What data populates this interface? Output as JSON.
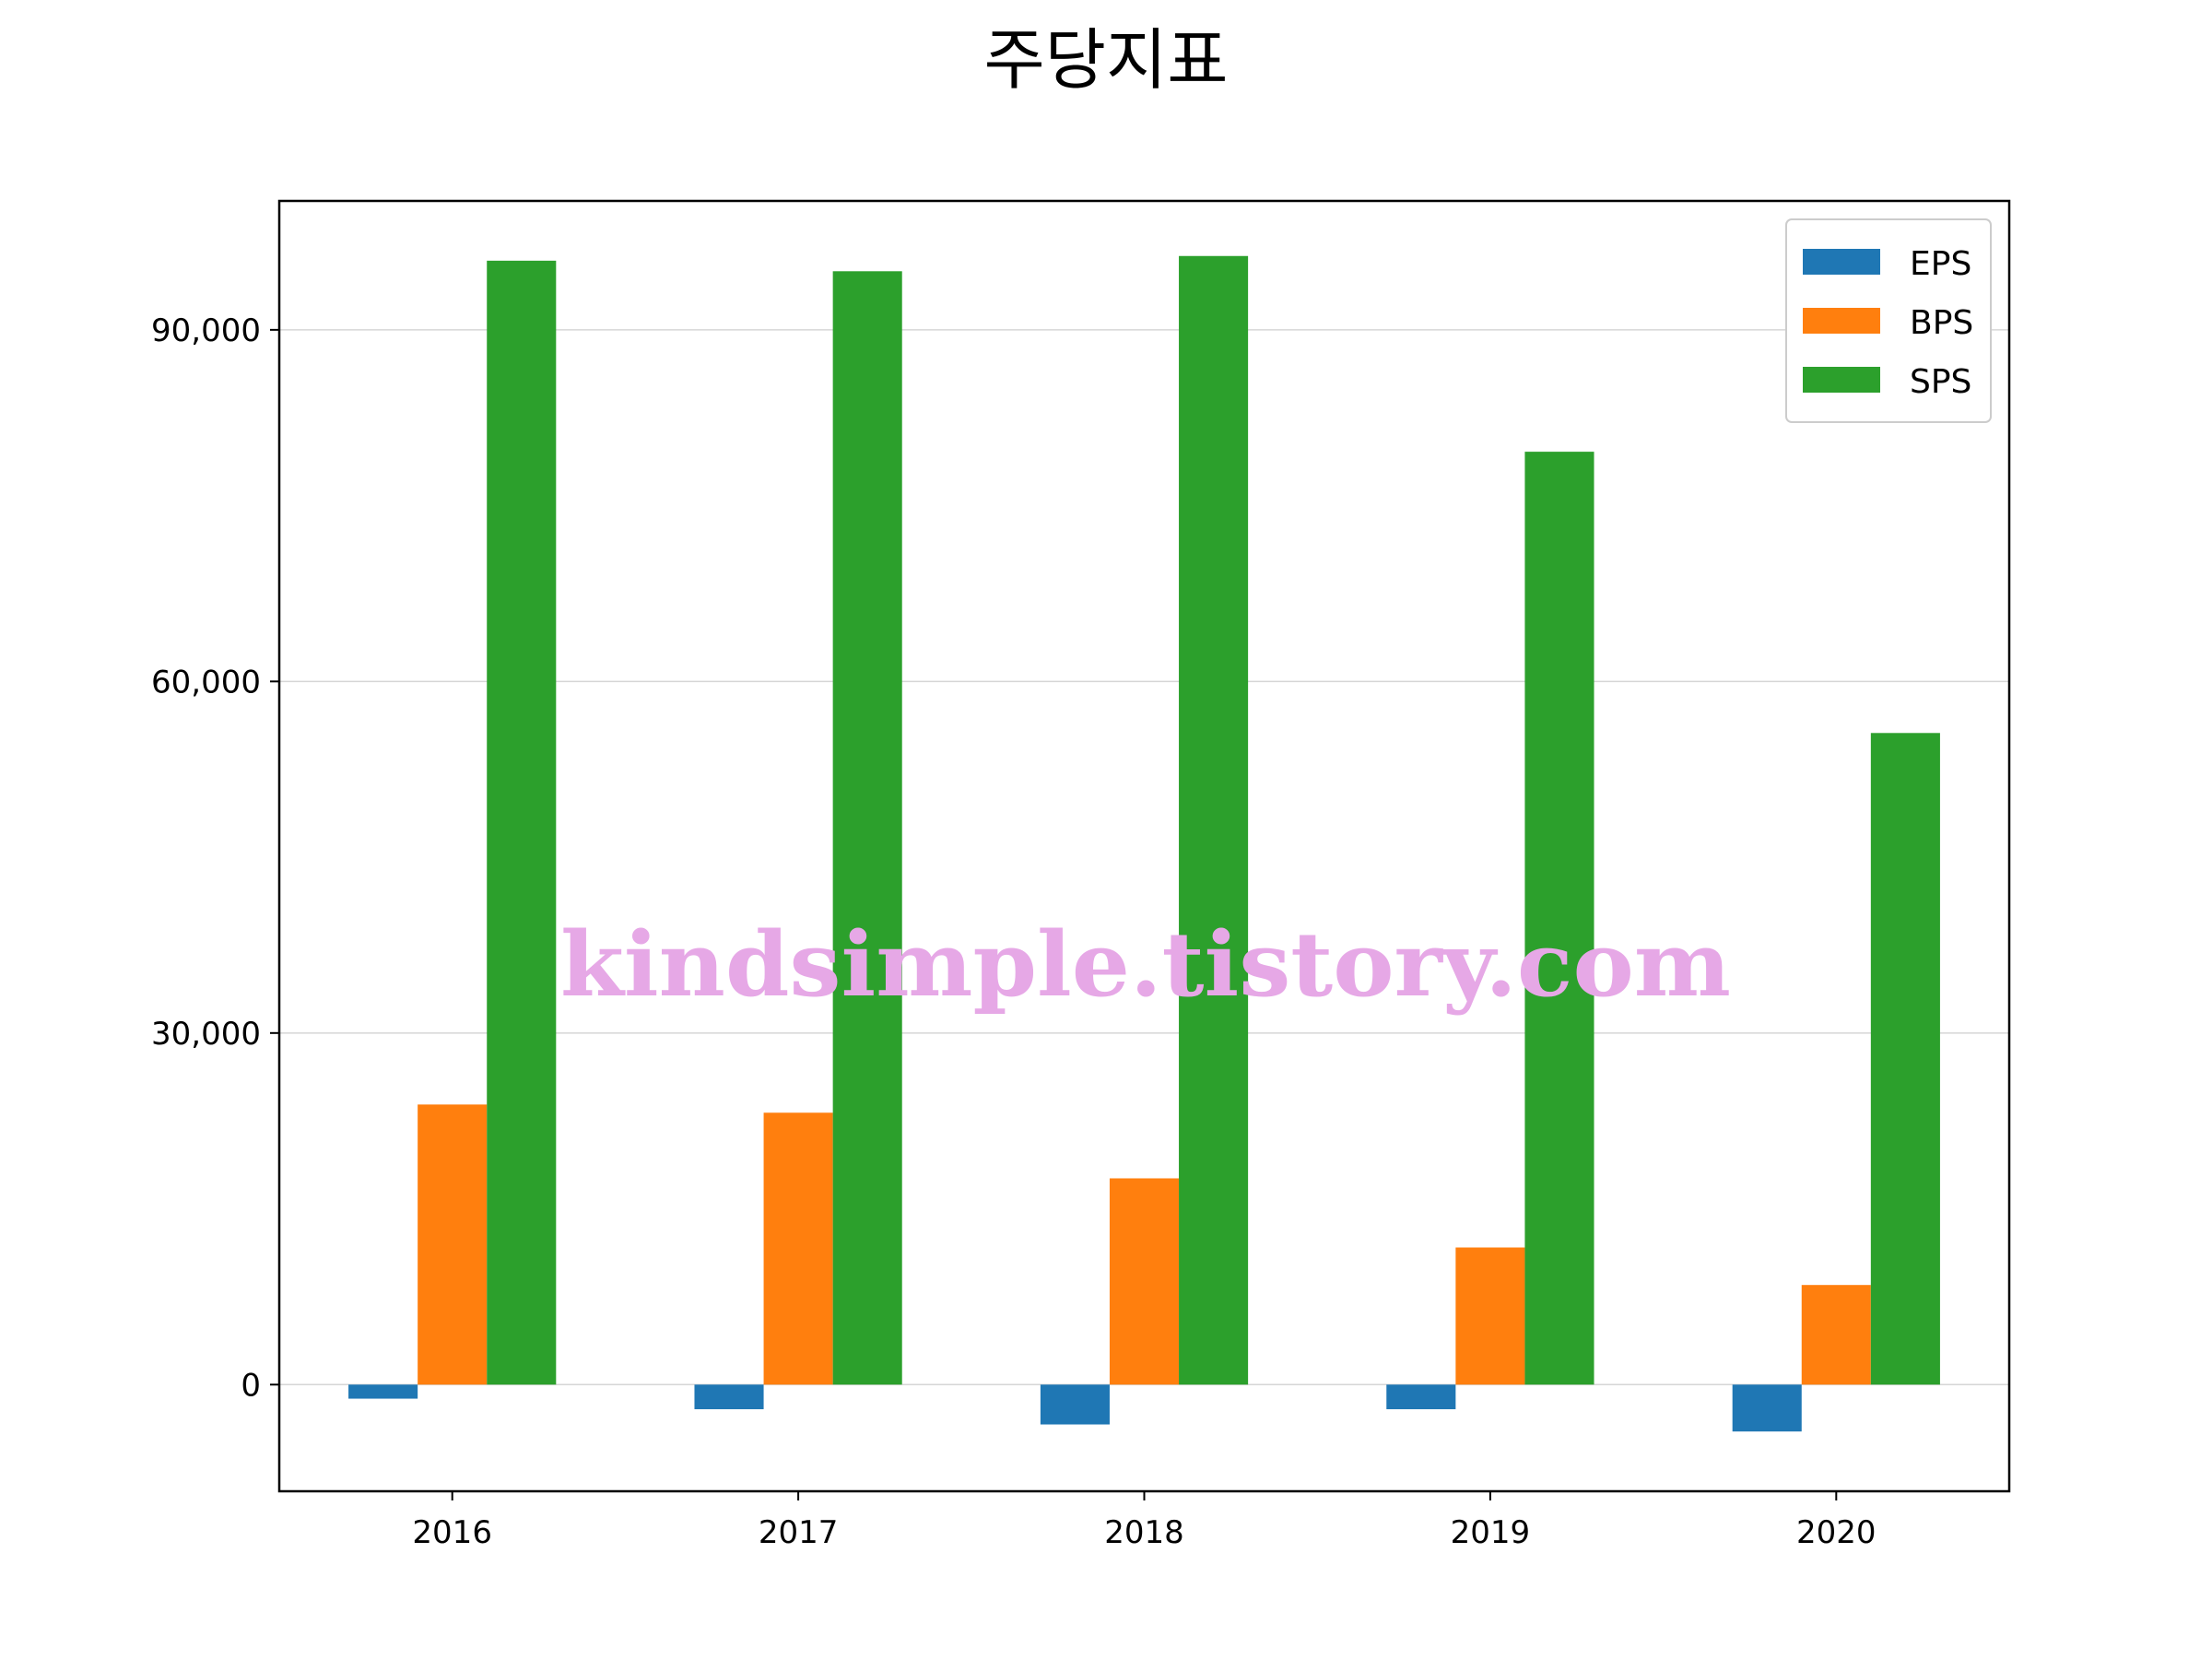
{
  "chart_data": {
    "type": "bar",
    "title": "주당지표",
    "xlabel": "",
    "ylabel": "",
    "categories": [
      "2016",
      "2017",
      "2018",
      "2019",
      "2020"
    ],
    "series": [
      {
        "name": "EPS",
        "color": "#1f77b4",
        "values": [
          -1200,
          -2100,
          -3400,
          -2100,
          -4000
        ]
      },
      {
        "name": "BPS",
        "color": "#ff7f0e",
        "values": [
          23900,
          23200,
          17600,
          11700,
          8500
        ]
      },
      {
        "name": "SPS",
        "color": "#2ca02c",
        "values": [
          95900,
          95000,
          96300,
          79600,
          55600
        ]
      }
    ],
    "ylim": [
      -9100,
      101000
    ],
    "yticks": [
      0,
      30000,
      60000,
      90000
    ],
    "ytick_labels": [
      "0",
      "30,000",
      "60,000",
      "90,000"
    ],
    "grid": "horizontal",
    "legend_position": "top-right"
  },
  "watermark": {
    "text": "kindsimple.tistory.com",
    "color": "#e6a8e6"
  }
}
